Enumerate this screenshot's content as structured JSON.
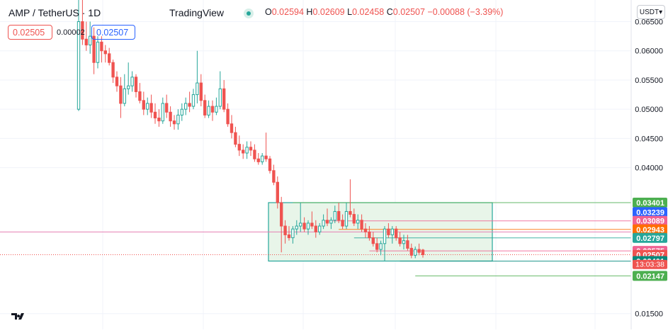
{
  "header": {
    "symbol": "AMP / TetherUS · 1D",
    "brand": "TradingView",
    "ohlc": {
      "open_label": "O",
      "open": "0.02594",
      "high_label": "H",
      "high": "0.02609",
      "low_label": "L",
      "low": "0.02458",
      "close_label": "C",
      "close": "0.02507",
      "change": "−0.00088 (−3.39%)"
    }
  },
  "trade": {
    "sell_price": "0.02505",
    "spread": "0.00002",
    "buy_price": "0.02507"
  },
  "currency_selector": "USDT▾",
  "colors": {
    "up": "#26a69a",
    "down": "#ef5350",
    "range_fill": "#e8f5e9",
    "grid": "#f0f3fa"
  },
  "chart_data": {
    "type": "candlestick",
    "ylim": [
      0.0123,
      0.0687
    ],
    "y_ticks": [
      "0.06500",
      "0.06000",
      "0.05500",
      "0.05000",
      "0.04500",
      "0.04000",
      "0.01500"
    ],
    "candles": [
      [
        0.05,
        0.069,
        0.0497,
        0.065
      ],
      [
        0.065,
        0.0695,
        0.061,
        0.062
      ],
      [
        0.062,
        0.065,
        0.06,
        0.061
      ],
      [
        0.061,
        0.065,
        0.0595,
        0.0625
      ],
      [
        0.0625,
        0.064,
        0.056,
        0.058
      ],
      [
        0.058,
        0.0625,
        0.057,
        0.0615
      ],
      [
        0.0615,
        0.0625,
        0.058,
        0.06
      ],
      [
        0.06,
        0.061,
        0.058,
        0.0595
      ],
      [
        0.0595,
        0.0605,
        0.0575,
        0.058
      ],
      [
        0.058,
        0.0585,
        0.0545,
        0.0555
      ],
      [
        0.0555,
        0.0565,
        0.053,
        0.054
      ],
      [
        0.054,
        0.0555,
        0.0485,
        0.051
      ],
      [
        0.051,
        0.056,
        0.0505,
        0.0535
      ],
      [
        0.0535,
        0.058,
        0.0525,
        0.054
      ],
      [
        0.054,
        0.0565,
        0.053,
        0.0555
      ],
      [
        0.0555,
        0.056,
        0.052,
        0.053
      ],
      [
        0.053,
        0.0545,
        0.051,
        0.0515
      ],
      [
        0.0515,
        0.053,
        0.049,
        0.05
      ],
      [
        0.05,
        0.052,
        0.049,
        0.051
      ],
      [
        0.051,
        0.0525,
        0.0485,
        0.0495
      ],
      [
        0.0495,
        0.051,
        0.0475,
        0.0485
      ],
      [
        0.0485,
        0.05,
        0.047,
        0.048
      ],
      [
        0.048,
        0.052,
        0.0475,
        0.051
      ],
      [
        0.051,
        0.0525,
        0.0485,
        0.0495
      ],
      [
        0.0495,
        0.0505,
        0.047,
        0.048
      ],
      [
        0.048,
        0.049,
        0.0465,
        0.0475
      ],
      [
        0.0475,
        0.05,
        0.0465,
        0.049
      ],
      [
        0.049,
        0.051,
        0.048,
        0.05
      ],
      [
        0.05,
        0.052,
        0.049,
        0.051
      ],
      [
        0.051,
        0.053,
        0.0495,
        0.0505
      ],
      [
        0.0505,
        0.0535,
        0.05,
        0.0525
      ],
      [
        0.0525,
        0.06,
        0.051,
        0.0545
      ],
      [
        0.0545,
        0.056,
        0.0505,
        0.0515
      ],
      [
        0.0515,
        0.0525,
        0.0485,
        0.049
      ],
      [
        0.049,
        0.0515,
        0.0485,
        0.0505
      ],
      [
        0.0505,
        0.0515,
        0.048,
        0.0495
      ],
      [
        0.0495,
        0.052,
        0.049,
        0.0505
      ],
      [
        0.0505,
        0.0565,
        0.05,
        0.0535
      ],
      [
        0.0535,
        0.055,
        0.0495,
        0.05
      ],
      [
        0.05,
        0.051,
        0.047,
        0.0475
      ],
      [
        0.0475,
        0.049,
        0.045,
        0.046
      ],
      [
        0.046,
        0.047,
        0.0435,
        0.044
      ],
      [
        0.044,
        0.0455,
        0.042,
        0.043
      ],
      [
        0.043,
        0.044,
        0.0415,
        0.0425
      ],
      [
        0.0425,
        0.0445,
        0.0415,
        0.0435
      ],
      [
        0.0435,
        0.0445,
        0.042,
        0.043
      ],
      [
        0.043,
        0.044,
        0.041,
        0.0415
      ],
      [
        0.0415,
        0.0425,
        0.0405,
        0.041
      ],
      [
        0.041,
        0.0425,
        0.0405,
        0.042
      ],
      [
        0.042,
        0.046,
        0.041,
        0.0415
      ],
      [
        0.0415,
        0.042,
        0.039,
        0.0395
      ],
      [
        0.0395,
        0.0405,
        0.037,
        0.0375
      ],
      [
        0.0375,
        0.0385,
        0.033,
        0.034
      ],
      [
        0.034,
        0.035,
        0.0255,
        0.03
      ],
      [
        0.03,
        0.031,
        0.027,
        0.0285
      ],
      [
        0.0285,
        0.03,
        0.0275,
        0.028
      ],
      [
        0.028,
        0.03,
        0.027,
        0.0295
      ],
      [
        0.0295,
        0.031,
        0.0285,
        0.03
      ],
      [
        0.03,
        0.034,
        0.029,
        0.0305
      ],
      [
        0.0305,
        0.0315,
        0.029,
        0.0295
      ],
      [
        0.0295,
        0.031,
        0.0285,
        0.0305
      ],
      [
        0.0305,
        0.0325,
        0.0295,
        0.03
      ],
      [
        0.03,
        0.031,
        0.028,
        0.029
      ],
      [
        0.029,
        0.0305,
        0.0285,
        0.03
      ],
      [
        0.03,
        0.032,
        0.0295,
        0.031
      ],
      [
        0.031,
        0.033,
        0.03,
        0.0305
      ],
      [
        0.0305,
        0.0315,
        0.0295,
        0.031
      ],
      [
        0.031,
        0.0335,
        0.0305,
        0.0325
      ],
      [
        0.0325,
        0.034,
        0.0305,
        0.031
      ],
      [
        0.031,
        0.032,
        0.0295,
        0.03
      ],
      [
        0.03,
        0.034,
        0.0295,
        0.0325
      ],
      [
        0.0325,
        0.038,
        0.0315,
        0.032
      ],
      [
        0.032,
        0.033,
        0.03,
        0.0305
      ],
      [
        0.0305,
        0.032,
        0.0295,
        0.031
      ],
      [
        0.031,
        0.032,
        0.029,
        0.0295
      ],
      [
        0.0295,
        0.0305,
        0.028,
        0.029
      ],
      [
        0.029,
        0.03,
        0.0275,
        0.028
      ],
      [
        0.028,
        0.029,
        0.0265,
        0.027
      ],
      [
        0.027,
        0.028,
        0.0255,
        0.026
      ],
      [
        0.026,
        0.0275,
        0.025,
        0.027
      ],
      [
        0.027,
        0.03,
        0.024,
        0.0295
      ],
      [
        0.0295,
        0.0305,
        0.028,
        0.0285
      ],
      [
        0.0285,
        0.03,
        0.027,
        0.0295
      ],
      [
        0.0295,
        0.03,
        0.0275,
        0.028
      ],
      [
        0.028,
        0.029,
        0.0265,
        0.027
      ],
      [
        0.027,
        0.0285,
        0.026,
        0.0275
      ],
      [
        0.0275,
        0.0285,
        0.0258,
        0.0262
      ],
      [
        0.0262,
        0.027,
        0.0245,
        0.025
      ],
      [
        0.025,
        0.0265,
        0.0245,
        0.026
      ],
      [
        0.026,
        0.027,
        0.025,
        0.0255
      ],
      [
        0.0259,
        0.0261,
        0.0246,
        0.0251
      ]
    ],
    "range_box": {
      "top": 0.03401,
      "bottom": 0.02401
    },
    "levels": [
      {
        "value": "0.03401",
        "color": "#4caf50",
        "line": true
      },
      {
        "value": "0.03239",
        "color": "#2962ff",
        "line": false
      },
      {
        "value": "0.03089",
        "color": "#f06292",
        "line": true
      },
      {
        "value": "0.02943",
        "color": "#ff6d00",
        "line": true
      },
      {
        "value": "0.02797",
        "color": "#26a69a",
        "line": true
      },
      {
        "value": "0.02575",
        "color": "#f06292",
        "line": true
      },
      {
        "value": "0.02507",
        "color": "#ef5350",
        "line": false
      },
      {
        "value": "0.02401",
        "color": "#00897b",
        "line": true
      },
      {
        "value": "0.02147",
        "color": "#4caf50",
        "line": true
      }
    ],
    "countdown": "13:03:38",
    "horizontal_line": 0.029
  }
}
